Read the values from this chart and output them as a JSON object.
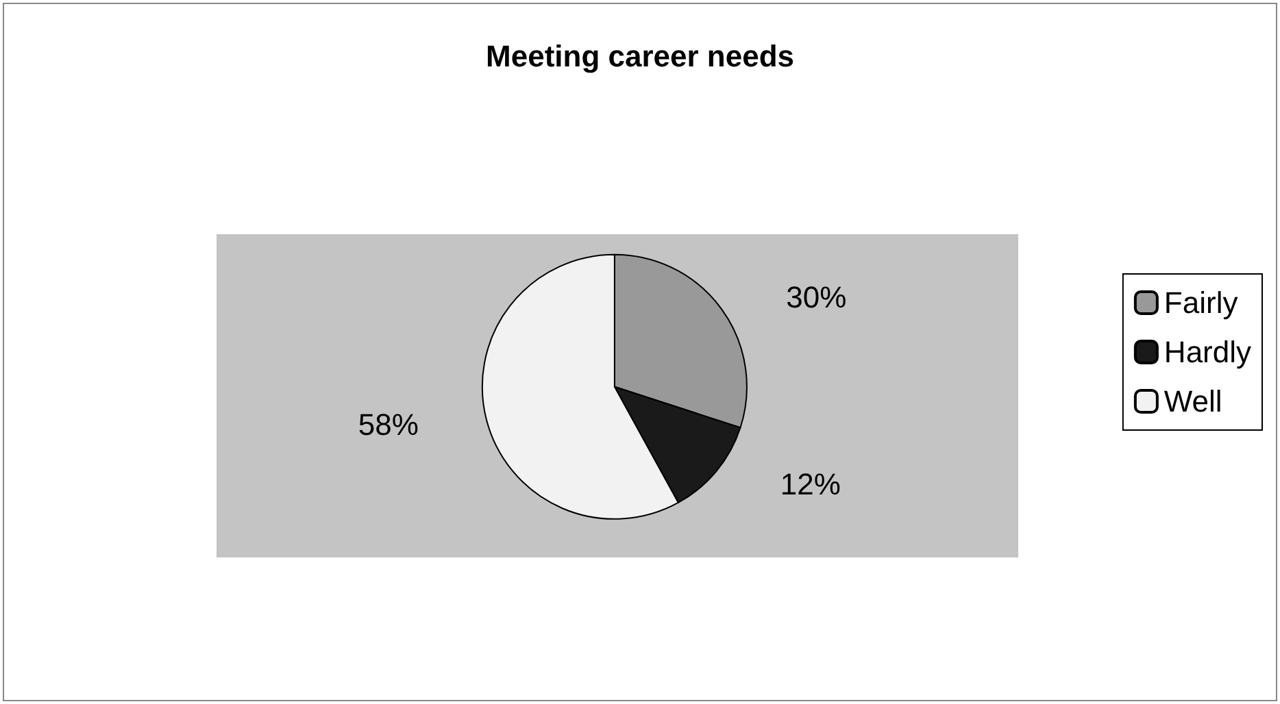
{
  "chart_data": {
    "type": "pie",
    "title": "Meeting career needs",
    "categories": [
      "Fairly",
      "Hardly",
      "Well"
    ],
    "values": [
      30,
      12,
      58
    ],
    "value_labels": [
      "30%",
      "12%",
      "58%"
    ],
    "colors": [
      "#999999",
      "#1a1a1a",
      "#f2f2f2"
    ],
    "legend": "right"
  }
}
